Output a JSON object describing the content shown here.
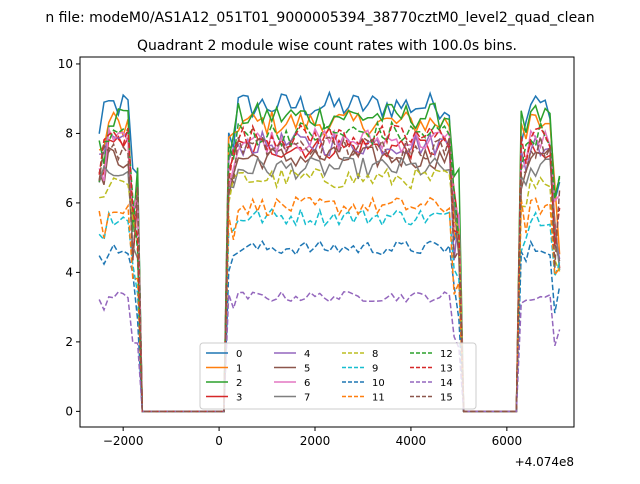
{
  "figure": {
    "suptitle": "n file: modeM0/AS1A12_051T01_9000005394_38770cztM0_level2_quad_clean",
    "offset_label": "+4.074e8"
  },
  "chart_data": {
    "type": "line",
    "title": "Quadrant 2 module wise count rates with 100.0s bins.",
    "xlabel": "",
    "ylabel": "",
    "xlim": [
      -2900,
      7400
    ],
    "ylim": [
      -0.45,
      10.2
    ],
    "x_ticks": [
      -2000,
      0,
      2000,
      4000,
      6000
    ],
    "x_tick_labels": [
      "−2000",
      "0",
      "2000",
      "4000",
      "6000"
    ],
    "y_ticks": [
      0,
      2,
      4,
      6,
      8,
      10
    ],
    "y_tick_labels": [
      "0",
      "2",
      "4",
      "6",
      "8",
      "10"
    ],
    "grid": false,
    "legend": {
      "placement": "lower-center",
      "columns": 4
    },
    "segments": [
      {
        "start": -2500,
        "end": -1700
      },
      {
        "start": 200,
        "end": 5000
      },
      {
        "start": 6300,
        "end": 7100
      }
    ],
    "series": [
      {
        "name": "0",
        "level": 8.8,
        "color": "#1f77b4",
        "dash": "solid"
      },
      {
        "name": "1",
        "level": 8.3,
        "color": "#ff7f0e",
        "dash": "solid"
      },
      {
        "name": "2",
        "level": 8.5,
        "color": "#2ca02c",
        "dash": "solid"
      },
      {
        "name": "3",
        "level": 7.6,
        "color": "#d62728",
        "dash": "solid"
      },
      {
        "name": "4",
        "level": 7.7,
        "color": "#9467bd",
        "dash": "solid"
      },
      {
        "name": "5",
        "level": 7.3,
        "color": "#8c564b",
        "dash": "solid"
      },
      {
        "name": "6",
        "level": 7.8,
        "color": "#e377c2",
        "dash": "solid"
      },
      {
        "name": "7",
        "level": 7.0,
        "color": "#7f7f7f",
        "dash": "solid"
      },
      {
        "name": "8",
        "level": 6.7,
        "color": "#bcbd22",
        "dash": "dashed"
      },
      {
        "name": "9",
        "level": 5.6,
        "color": "#17becf",
        "dash": "dashed"
      },
      {
        "name": "10",
        "level": 4.7,
        "color": "#1f77b4",
        "dash": "dashed"
      },
      {
        "name": "11",
        "level": 5.9,
        "color": "#ff7f0e",
        "dash": "dashed"
      },
      {
        "name": "12",
        "level": 8.0,
        "color": "#2ca02c",
        "dash": "dashed"
      },
      {
        "name": "13",
        "level": 7.9,
        "color": "#d62728",
        "dash": "dashed"
      },
      {
        "name": "14",
        "level": 3.3,
        "color": "#9467bd",
        "dash": "dashed"
      },
      {
        "name": "15",
        "level": 7.6,
        "color": "#8c564b",
        "dash": "dashed"
      }
    ]
  }
}
